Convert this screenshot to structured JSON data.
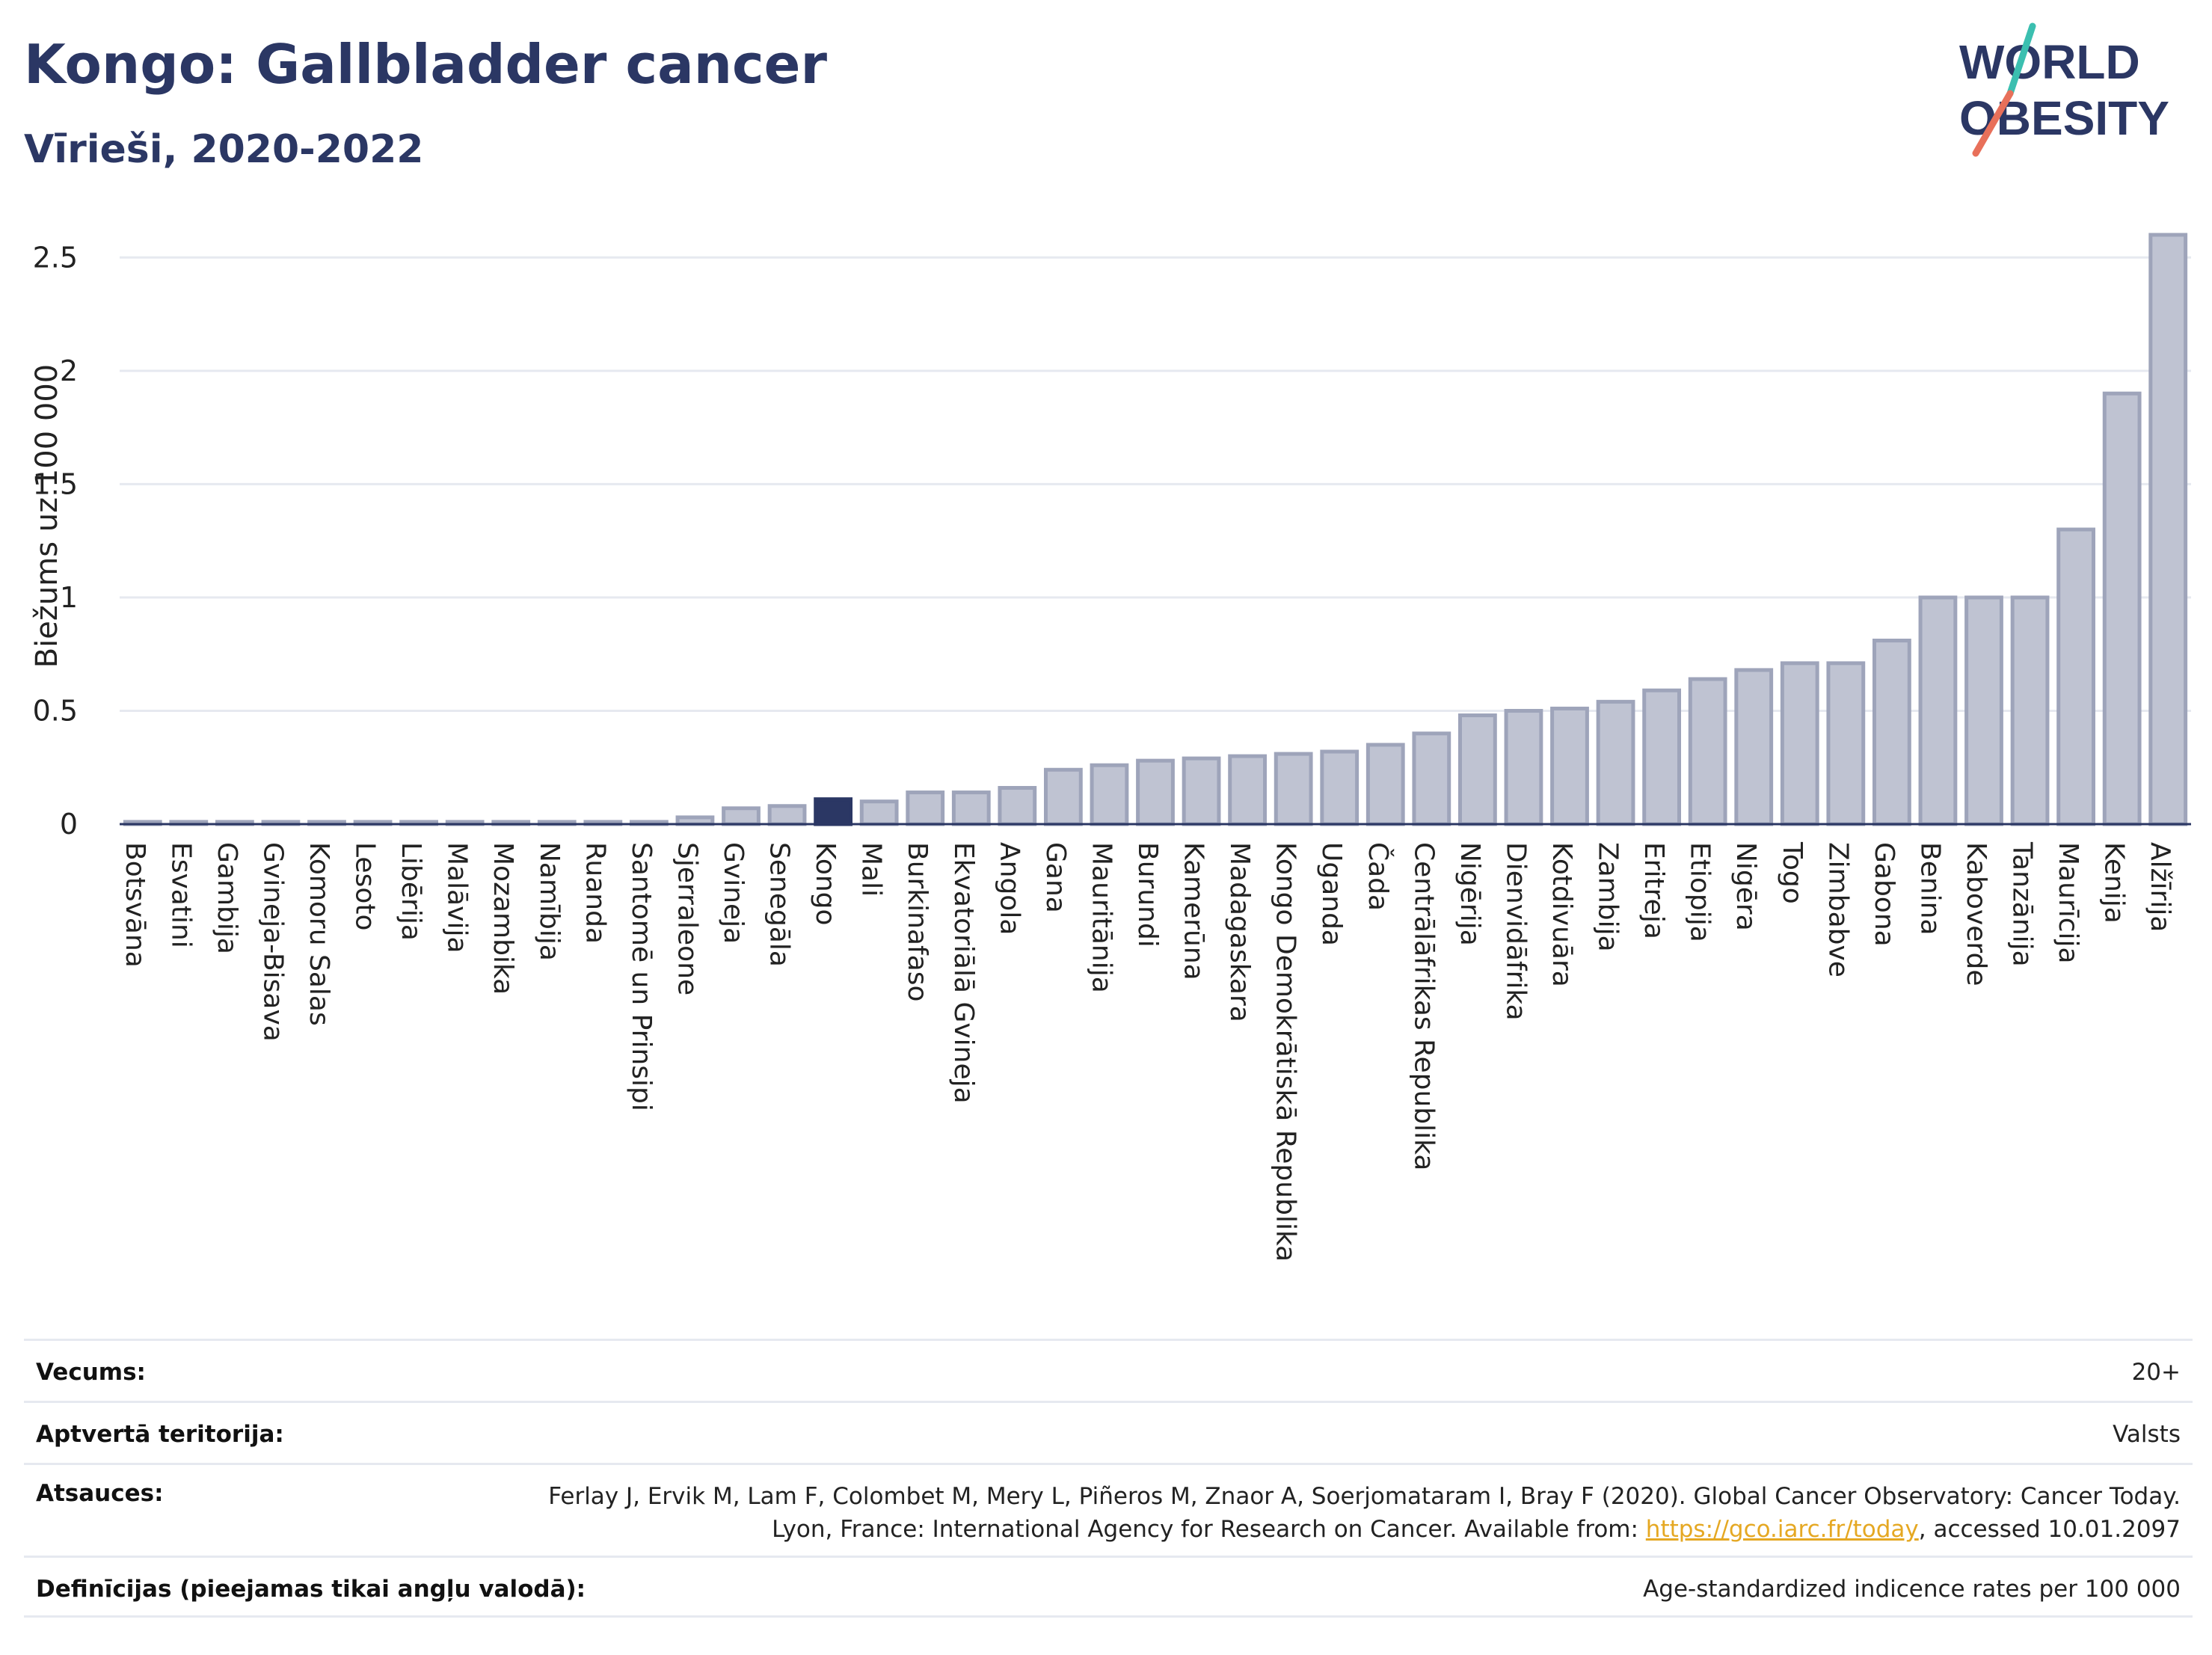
{
  "header": {
    "title": "Kongo: Gallbladder cancer",
    "subtitle": "Vīrieši, 2020-2022"
  },
  "logo": {
    "line1": "WORLD",
    "line2": "OBESITY"
  },
  "colors": {
    "bar": "#bfc3d2",
    "bar_stroke": "#9ea4ba",
    "highlight": "#2b3764",
    "title": "#2b3764",
    "grid": "#e6e9f0",
    "link": "#e5a823"
  },
  "chart_data": {
    "type": "bar",
    "ylabel": "Biežums uz 100 000",
    "ylim": [
      0,
      2.7
    ],
    "yticks": [
      0,
      0.5,
      1,
      1.5,
      2,
      2.5
    ],
    "ytick_labels": [
      "0",
      "0.5",
      "1",
      "1.5",
      "2",
      "2.5"
    ],
    "grid": true,
    "highlight": "Kongo",
    "categories": [
      "Botsvāna",
      "Esvatini",
      "Gambija",
      "Gvineja-Bisava",
      "Komoru Salas",
      "Lesoto",
      "Libērija",
      "Malāvija",
      "Mozambika",
      "Namībija",
      "Ruanda",
      "Santomē un Prinsipi",
      "Sjerraleone",
      "Gvineja",
      "Senegāla",
      "Kongo",
      "Mali",
      "Burkinafaso",
      "Ekvatoriālā Gvineja",
      "Angola",
      "Gana",
      "Mauritānija",
      "Burundi",
      "Kamerūna",
      "Madagaskara",
      "Kongo Demokrātiskā Republika",
      "Uganda",
      "Čada",
      "Centrālāfrikas Republika",
      "Nigērija",
      "Dienvidāfrika",
      "Kotdivuāra",
      "Zambija",
      "Eritreja",
      "Etiopija",
      "Nigēra",
      "Togo",
      "Zimbabve",
      "Gabona",
      "Benina",
      "Kaboverde",
      "Tanzānija",
      "Maurīcija",
      "Kenija",
      "Alžīrija"
    ],
    "values": [
      0.01,
      0.01,
      0.01,
      0.01,
      0.01,
      0.01,
      0.01,
      0.01,
      0.01,
      0.01,
      0.01,
      0.01,
      0.03,
      0.07,
      0.08,
      0.11,
      0.1,
      0.14,
      0.14,
      0.16,
      0.24,
      0.26,
      0.28,
      0.29,
      0.3,
      0.31,
      0.32,
      0.35,
      0.4,
      0.48,
      0.5,
      0.51,
      0.54,
      0.59,
      0.64,
      0.68,
      0.71,
      0.71,
      0.81,
      1.0,
      1.0,
      1.0,
      1.3,
      1.9,
      2.6
    ]
  },
  "info": {
    "age_label": "Vecums:",
    "age_value": "20+",
    "territory_label": "Aptvertā teritorija:",
    "territory_value": "Valsts",
    "refs_label": "Atsauces:",
    "refs_text_1": "Ferlay J, Ervik M, Lam F, Colombet M, Mery L, Piñeros M, Znaor A, Soerjomataram I, Bray F (2020). Global Cancer Observatory: Cancer Today. Lyon, France: International Agency for Research on Cancer. Available from: ",
    "refs_link": "https://gco.iarc.fr/today",
    "refs_text_2": ", accessed 10.01.2097",
    "defs_label": "Definīcijas (pieejamas tikai angļu valodā):",
    "defs_value": "Age-standardized indicence rates per 100 000"
  }
}
